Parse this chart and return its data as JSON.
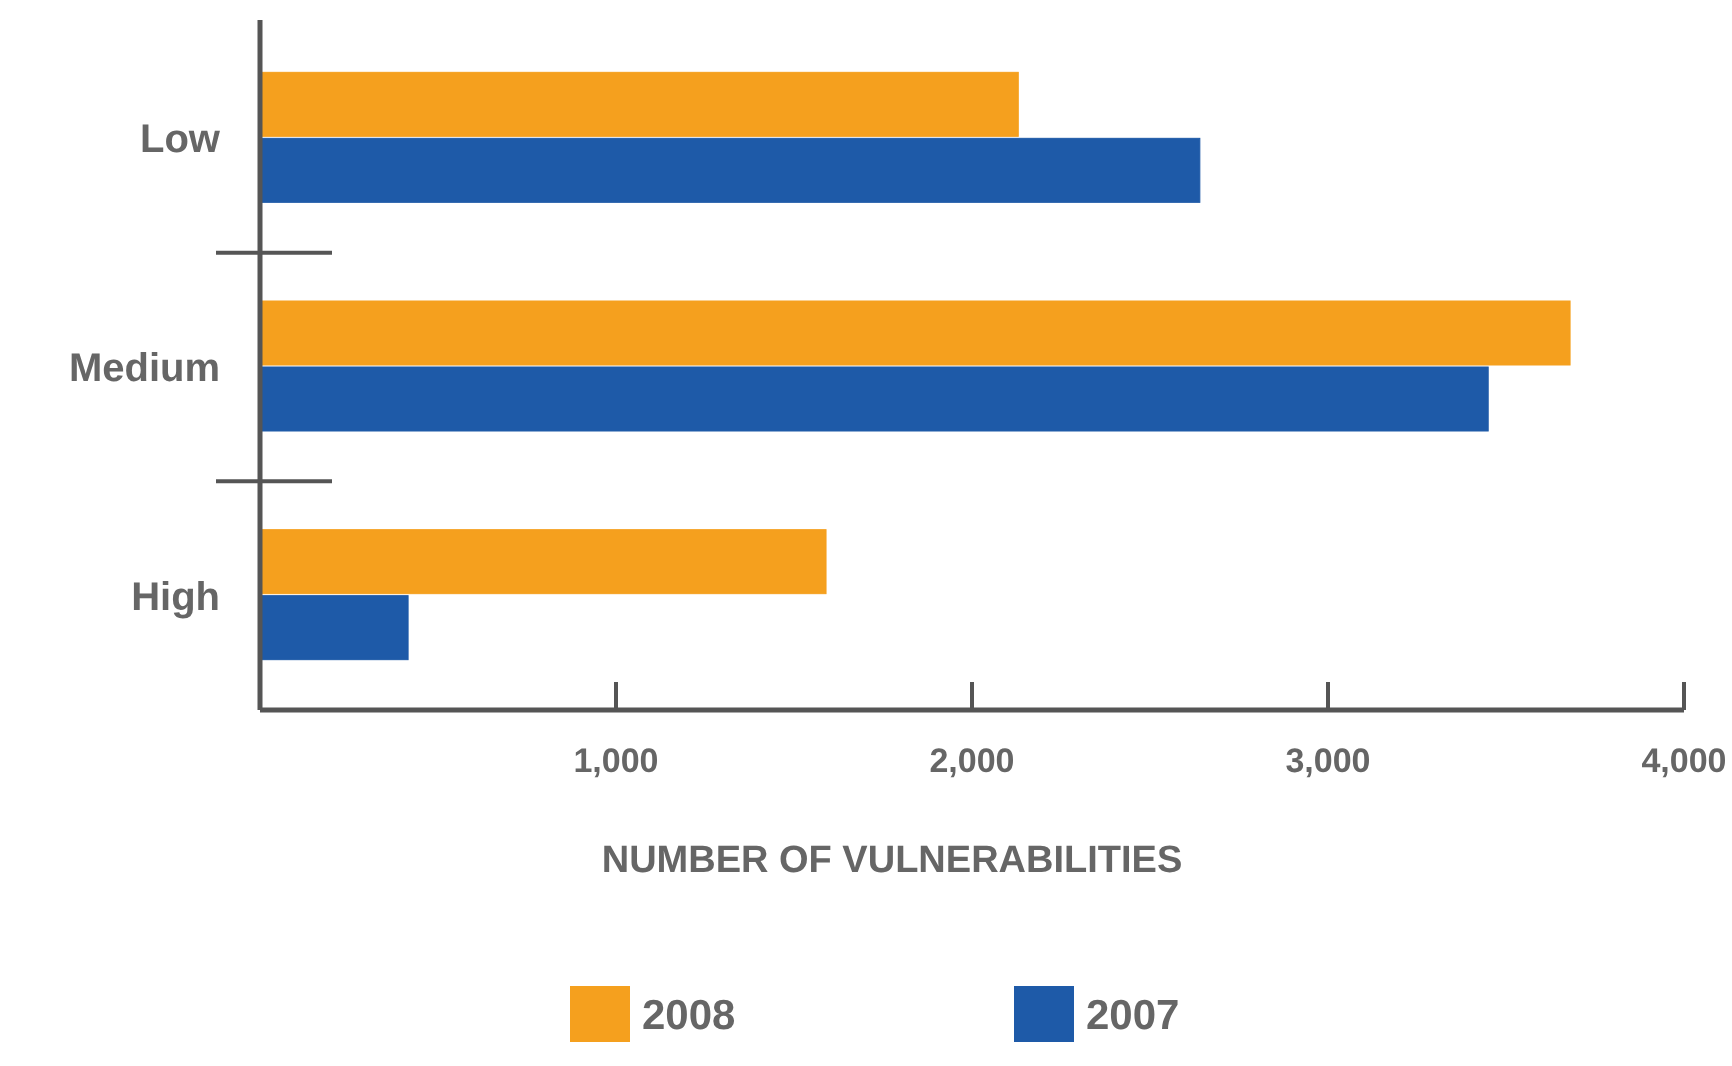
{
  "chart_data": {
    "type": "bar",
    "orientation": "horizontal",
    "xlabel": "NUMBER OF VULNERABILITIES",
    "categories": [
      "Low",
      "Medium",
      "High"
    ],
    "series": [
      {
        "name": "2008",
        "color": "#f5a01e",
        "values": [
          2130,
          3680,
          1590
        ]
      },
      {
        "name": "2007",
        "color": "#1e5aa8",
        "values": [
          2640,
          3450,
          416
        ]
      }
    ],
    "xlim": [
      0,
      4000
    ],
    "xticks": [
      {
        "value": 1000,
        "label": "1,000"
      },
      {
        "value": 2000,
        "label": "2,000"
      },
      {
        "value": 3000,
        "label": "3,000"
      },
      {
        "value": 4000,
        "label": "4,000"
      }
    ],
    "grid": false,
    "legend": "bottom"
  }
}
